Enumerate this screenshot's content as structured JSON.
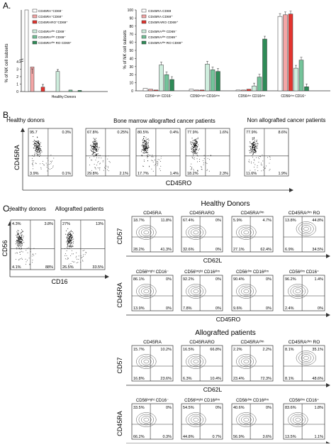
{
  "panel_labels": {
    "a": "A.",
    "b": "B.",
    "c": "C."
  },
  "colors": {
    "white": "#ffffff",
    "pink": "#f4a6a6",
    "red": "#e3342f",
    "lightgreen": "#cfeede",
    "midgreen": "#74c39a",
    "darkgreen": "#2e8b57"
  },
  "chart_data": [
    {
      "type": "bar",
      "ylabel": "% of NK cell subsets",
      "categories": [
        "Healthy Donors"
      ],
      "ylim": [
        0,
        4
      ],
      "axis_break": true,
      "ticks": [
        0,
        1,
        2,
        3,
        4
      ],
      "series": [
        {
          "name": "CD45RA⁺CD69⁻",
          "values": [
            93
          ]
        },
        {
          "name": "CD45RA⁺CD69⁺",
          "values": [
            3.3
          ]
        },
        {
          "name": "CD45RARO⁺CD69⁺",
          "values": [
            0.6
          ]
        },
        {
          "name": "CD45RAᵈⁱᵐ CD69⁻",
          "values": [
            2.7
          ]
        },
        {
          "name": "CD45RAᵈⁱᵐ CD69⁺",
          "values": [
            0.2
          ]
        },
        {
          "name": "CD45RAᵈⁱᵐ RO CD69⁺",
          "values": [
            0.15
          ]
        }
      ]
    },
    {
      "type": "bar",
      "ylabel": "% of NK cell subsets",
      "categories": [
        "CD56ᵇʳⁱᵍʰᵗ CD16⁻",
        "CD56ᵇʳⁱᵍʰᵗ CD16ᵈⁱᵐ",
        "CD56ᵈⁱᵐ CD16ᵈⁱᵐ",
        "CD56ᵈⁱᵐ CD16⁺"
      ],
      "ylim": [
        0,
        100
      ],
      "ticks": [
        0,
        10,
        20,
        30,
        40,
        50,
        60,
        70,
        80,
        90,
        100
      ],
      "series": [
        {
          "name": "CD45RA CD69",
          "values": [
            3,
            2,
            1,
            92
          ]
        },
        {
          "name": "CD45RA CD69⁺",
          "values": [
            2,
            1,
            1,
            94
          ]
        },
        {
          "name": "CD45RARO CD69⁺",
          "values": [
            1,
            1,
            2,
            95
          ]
        },
        {
          "name": "CD45RAᵈⁱᵐ CD69⁻",
          "values": [
            32,
            33,
            6,
            28
          ]
        },
        {
          "name": "CD45RAᵈⁱᵐ CD69⁺",
          "values": [
            20,
            26,
            17,
            38
          ]
        },
        {
          "name": "CD45RAᵈⁱᵐ RO CD69⁺",
          "values": [
            14,
            24,
            64,
            5
          ]
        }
      ]
    }
  ],
  "panel_b": {
    "col_labels": [
      "Healthy donors",
      "Bone marrow allografted cancer patients",
      "Non allografted cancer patients"
    ],
    "ylabel": "CD45RA",
    "xlabel": "CD45RO",
    "plots": [
      [
        "95.7",
        "0.3%",
        "3.9%",
        "0.1%"
      ],
      [
        "67.8%",
        "0.25%",
        "29.8%",
        "2.1%"
      ],
      [
        "80.5%",
        "0.4%",
        "17.7%",
        "1.4%"
      ],
      [
        "77.9%",
        "1.6%",
        "18.2%",
        "2.3%"
      ],
      [
        "77.9%",
        "8.6%",
        "11.6%",
        "1.9%"
      ]
    ]
  },
  "panel_c_left": {
    "col_labels": [
      "Healthy donors",
      "Allografted patients"
    ],
    "ylabel": "CD56",
    "xlabel": "CD16",
    "plots": [
      [
        "4.3%",
        "3.8%",
        "4.1%",
        "88%"
      ],
      [
        "27%",
        "13%",
        "26.5%",
        "33.5%"
      ]
    ]
  },
  "panel_c_right": {
    "sections": [
      {
        "title": "Healthy Donors",
        "top": {
          "ylabel": "CD57",
          "xlabel": "CD62L",
          "titles": [
            "CD45RA",
            "CD45RARO",
            "CD45RAᵈⁱᵐ",
            "CD45RAᵈⁱᵐ RO"
          ],
          "plots": [
            [
              "18.7%",
              "11.8%",
              "28.2%",
              "41.3%"
            ],
            [
              "67.4%",
              "0%",
              "32.6%",
              "0%"
            ],
            [
              "5.9%",
              "4.7%",
              "27.1%",
              "62.4%"
            ],
            [
              "13.8%",
              "44.8%",
              "6.9%",
              "34.5%"
            ]
          ]
        },
        "bottom": {
          "ylabel": "CD45RA",
          "xlabel": "CD45RO",
          "titles": [
            "CD56ᵇʳⁱᵍʰᵗ CD16⁻",
            "CD56ᵇʳⁱᵍʰᵗ CD16ᵈⁱᵐ",
            "CD56ᵈⁱᵐ CD16ᵈⁱᵐ",
            "CD56ᵈⁱᵐ CD16⁺"
          ],
          "plots": [
            [
              "86.1%",
              "0%",
              "13.9%",
              "0%"
            ],
            [
              "92.2%",
              "0%",
              "7.8%",
              "0%"
            ],
            [
              "90.4%",
              "0%",
              "9.6%",
              "0%"
            ],
            [
              "96.2%",
              "1.4%",
              "2.4%",
              "0%"
            ]
          ]
        }
      },
      {
        "title": "Allografted patients",
        "top": {
          "ylabel": "CD57",
          "xlabel": "CD62L",
          "titles": [
            "CD45RA",
            "CD45RARO",
            "CD45RAᵈⁱᵐ",
            "CD45RAᵈⁱᵐ RO"
          ],
          "plots": [
            [
              "15.7%",
              "10.2%",
              "16.8%",
              "23.6%"
            ],
            [
              "16.5%",
              "66.8%",
              "6.3%",
              "10.4%"
            ],
            [
              "2.2%",
              "2.2%",
              "23.4%",
              "72.3%"
            ],
            [
              "8.1%",
              "35.1%",
              "8.1%",
              "48.6%"
            ]
          ]
        },
        "bottom": {
          "ylabel": "CD45RA",
          "xlabel": "CD45RO",
          "titles": [
            "CD56ᵇʳⁱᵍʰᵗ CD16⁻",
            "CD56ᵇʳⁱᵍʰᵗ CD16ᵈⁱᵐ",
            "CD56ᵈⁱᵐ CD16ᵈⁱᵐ",
            "CD56ᵈⁱᵐ CD16⁺"
          ],
          "plots": [
            [
              "33.5%",
              "0%",
              "66.2%",
              "0.3%"
            ],
            [
              "54.5%",
              "0%",
              "44.8%",
              "0.7%"
            ],
            [
              "40.6%",
              "0%",
              "56.9%",
              "3.6%"
            ],
            [
              "83.6%",
              "1.8%",
              "13.5%",
              "1.1%"
            ]
          ]
        }
      }
    ]
  }
}
